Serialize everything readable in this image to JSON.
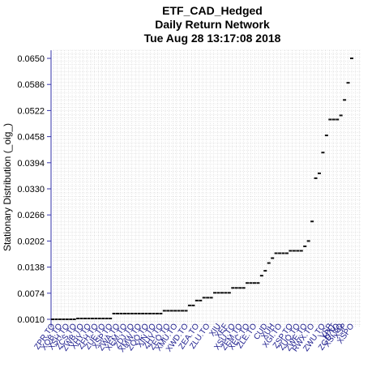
{
  "chart_data": {
    "type": "scatter",
    "title": "ETF_CAD_Hedged",
    "subtitle1": "Daily Return Network",
    "subtitle2": "Tue Aug 28 13:17:08 2018",
    "xlabel": "",
    "ylabel": "Stationary Distribution (_oig_)",
    "yticks": [
      "0.0650",
      "0.0586",
      "0.0522",
      "0.0458",
      "0.0394",
      "0.0330",
      "0.0266",
      "0.0202",
      "0.0138",
      "0.0074",
      "0.0010"
    ],
    "ylim": [
      0.001,
      0.065
    ],
    "grid": true,
    "n_points": 84,
    "values": [
      0.001,
      0.001,
      0.001,
      0.001,
      0.001,
      0.001,
      0.001,
      0.0012,
      0.0012,
      0.0012,
      0.0012,
      0.0012,
      0.0012,
      0.0012,
      0.0012,
      0.0012,
      0.0012,
      0.0024,
      0.0024,
      0.0024,
      0.0024,
      0.0024,
      0.0024,
      0.0024,
      0.0024,
      0.0024,
      0.0024,
      0.0024,
      0.0024,
      0.0024,
      0.0024,
      0.0031,
      0.0031,
      0.0031,
      0.0031,
      0.0031,
      0.0031,
      0.0031,
      0.0044,
      0.0044,
      0.0056,
      0.0056,
      0.0063,
      0.0063,
      0.0063,
      0.0075,
      0.0075,
      0.0075,
      0.0075,
      0.0075,
      0.0087,
      0.0087,
      0.0087,
      0.0087,
      0.0099,
      0.0099,
      0.0099,
      0.0099,
      0.0117,
      0.0129,
      0.0148,
      0.016,
      0.0172,
      0.0172,
      0.0172,
      0.0172,
      0.0178,
      0.0178,
      0.0178,
      0.0178,
      0.0189,
      0.0202,
      0.025,
      0.0356,
      0.0368,
      0.0419,
      0.0461,
      0.05,
      0.05,
      0.05,
      0.051,
      0.0548,
      0.059,
      0.065
    ],
    "x_labels": [
      {
        "index": 1,
        "label": "ZPR.TO"
      },
      {
        "index": 3,
        "label": "XQB.TO"
      },
      {
        "index": 5,
        "label": "XSH.TO"
      },
      {
        "index": 7,
        "label": "ZCS.TO"
      },
      {
        "index": 9,
        "label": "ZWB.TO"
      },
      {
        "index": 11,
        "label": "XHY.TO"
      },
      {
        "index": 13,
        "label": "ZFH.TO"
      },
      {
        "index": 15,
        "label": "ZUE.TO"
      },
      {
        "index": 17,
        "label": "XSP.TO"
      },
      {
        "index": 19,
        "label": "ZWA.TO"
      },
      {
        "index": 21,
        "label": "XEM.TO"
      },
      {
        "index": 23,
        "label": "ZDJ.TO"
      },
      {
        "index": 25,
        "label": "XMW.TO"
      },
      {
        "index": 27,
        "label": "ZQQ.TO"
      },
      {
        "index": 29,
        "label": "XIN.TO"
      },
      {
        "index": 31,
        "label": "ZHY.TO"
      },
      {
        "index": 33,
        "label": "ZEQ.TO"
      },
      {
        "index": 35,
        "label": "XMU.TO"
      },
      {
        "index": 38,
        "label": "XWD.TO"
      },
      {
        "index": 41,
        "label": "ZEA.TO"
      },
      {
        "index": 44,
        "label": "ZLU.TO"
      },
      {
        "index": 47,
        "label": "XIU"
      },
      {
        "index": 49,
        "label": "XEF"
      },
      {
        "index": 51,
        "label": "XSU.TO"
      },
      {
        "index": 53,
        "label": "ZEM.TO"
      },
      {
        "index": 55,
        "label": "XEC.TO"
      },
      {
        "index": 57,
        "label": "ZLE.TO"
      },
      {
        "index": 60,
        "label": "CUD"
      },
      {
        "index": 62,
        "label": "XUH"
      },
      {
        "index": 64,
        "label": "XGI.TO"
      },
      {
        "index": 67,
        "label": "ZSP.TO"
      },
      {
        "index": 69,
        "label": "ZUQ.TO"
      },
      {
        "index": 71,
        "label": "ZWE.TO"
      },
      {
        "index": 73,
        "label": "RWX.TO"
      },
      {
        "index": 76,
        "label": "ZWU.TO"
      },
      {
        "index": 78,
        "label": "VSP"
      },
      {
        "index": 79,
        "label": "HXT"
      },
      {
        "index": 80,
        "label": "ZGD.TO"
      },
      {
        "index": 81,
        "label": "XSI.TO"
      },
      {
        "index": 82,
        "label": "XSP"
      },
      {
        "index": 84,
        "label": "XSPO"
      }
    ]
  }
}
